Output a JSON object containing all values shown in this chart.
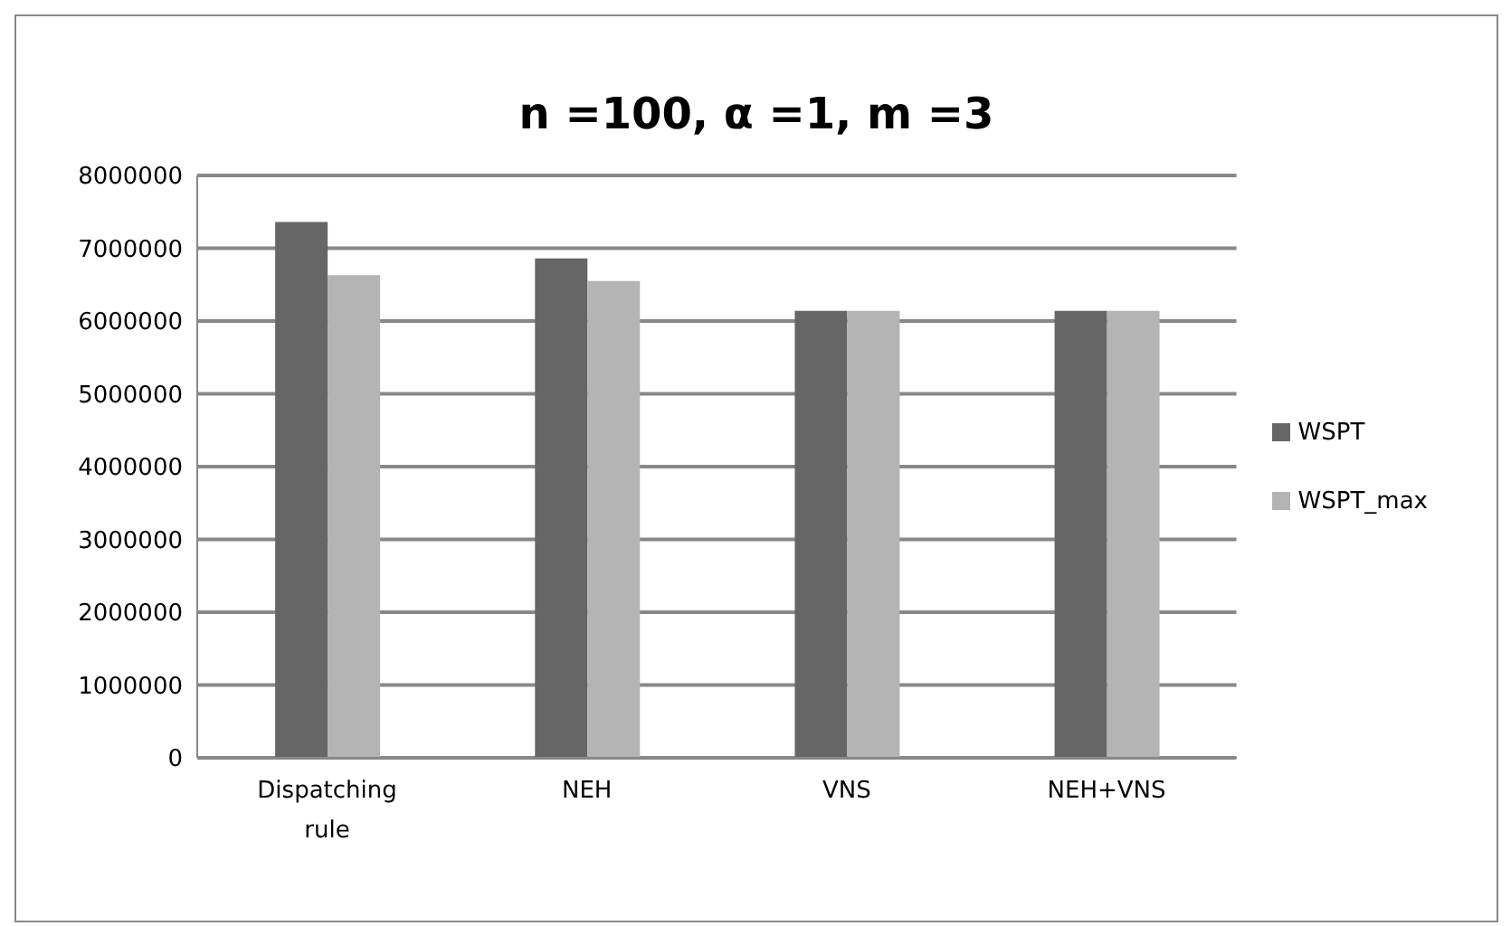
{
  "chart_data": {
    "type": "bar",
    "title": "n =100, α =1, m =3",
    "categories": [
      "Dispatching rule",
      "NEH",
      "VNS",
      "NEH+VNS"
    ],
    "series": [
      {
        "name": "WSPT",
        "color": "#666666",
        "values": [
          7360000,
          6860000,
          6140000,
          6140000
        ]
      },
      {
        "name": "WSPT_max",
        "color": "#b4b4b4",
        "values": [
          6630000,
          6550000,
          6140000,
          6140000
        ]
      }
    ],
    "ylim": [
      0,
      8000000
    ],
    "yticks": [
      0,
      1000000,
      2000000,
      3000000,
      4000000,
      5000000,
      6000000,
      7000000,
      8000000
    ],
    "grid": "y",
    "legend": "right"
  }
}
